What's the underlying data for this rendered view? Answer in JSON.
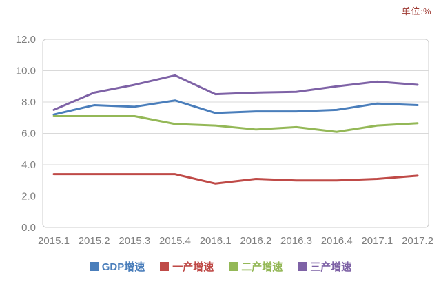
{
  "unit_label": "单位:%",
  "chart_data": {
    "type": "line",
    "title": "",
    "xlabel": "",
    "ylabel": "",
    "ylim": [
      0,
      12
    ],
    "ytick_step": 2,
    "grid": true,
    "legend_position": "bottom",
    "categories": [
      "2015.1",
      "2015.2",
      "2015.3",
      "2015.4",
      "2016.1",
      "2016.2",
      "2016.3",
      "2016.4",
      "2017.1",
      "2017.2"
    ],
    "series": [
      {
        "name": "GDP增速",
        "color": "#4a7ebb",
        "values": [
          7.2,
          7.8,
          7.7,
          8.1,
          7.3,
          7.4,
          7.4,
          7.5,
          7.9,
          7.8
        ]
      },
      {
        "name": "一产增速",
        "color": "#bf4a47",
        "values": [
          3.4,
          3.4,
          3.4,
          3.4,
          2.8,
          3.1,
          3.0,
          3.0,
          3.1,
          3.3
        ]
      },
      {
        "name": "二产增速",
        "color": "#94b857",
        "values": [
          7.1,
          7.1,
          7.1,
          6.6,
          6.5,
          6.25,
          6.4,
          6.1,
          6.5,
          6.65
        ]
      },
      {
        "name": "三产增速",
        "color": "#7e62a6",
        "values": [
          7.5,
          8.6,
          9.1,
          9.7,
          8.5,
          8.6,
          8.65,
          9.0,
          9.3,
          9.1
        ]
      }
    ],
    "colors": {
      "grid": "#d9d9d9",
      "plot_border": "#cccccc",
      "tick_text": "#7f7f7f",
      "unit_text": "#9e3a33",
      "background": "#ffffff"
    }
  }
}
